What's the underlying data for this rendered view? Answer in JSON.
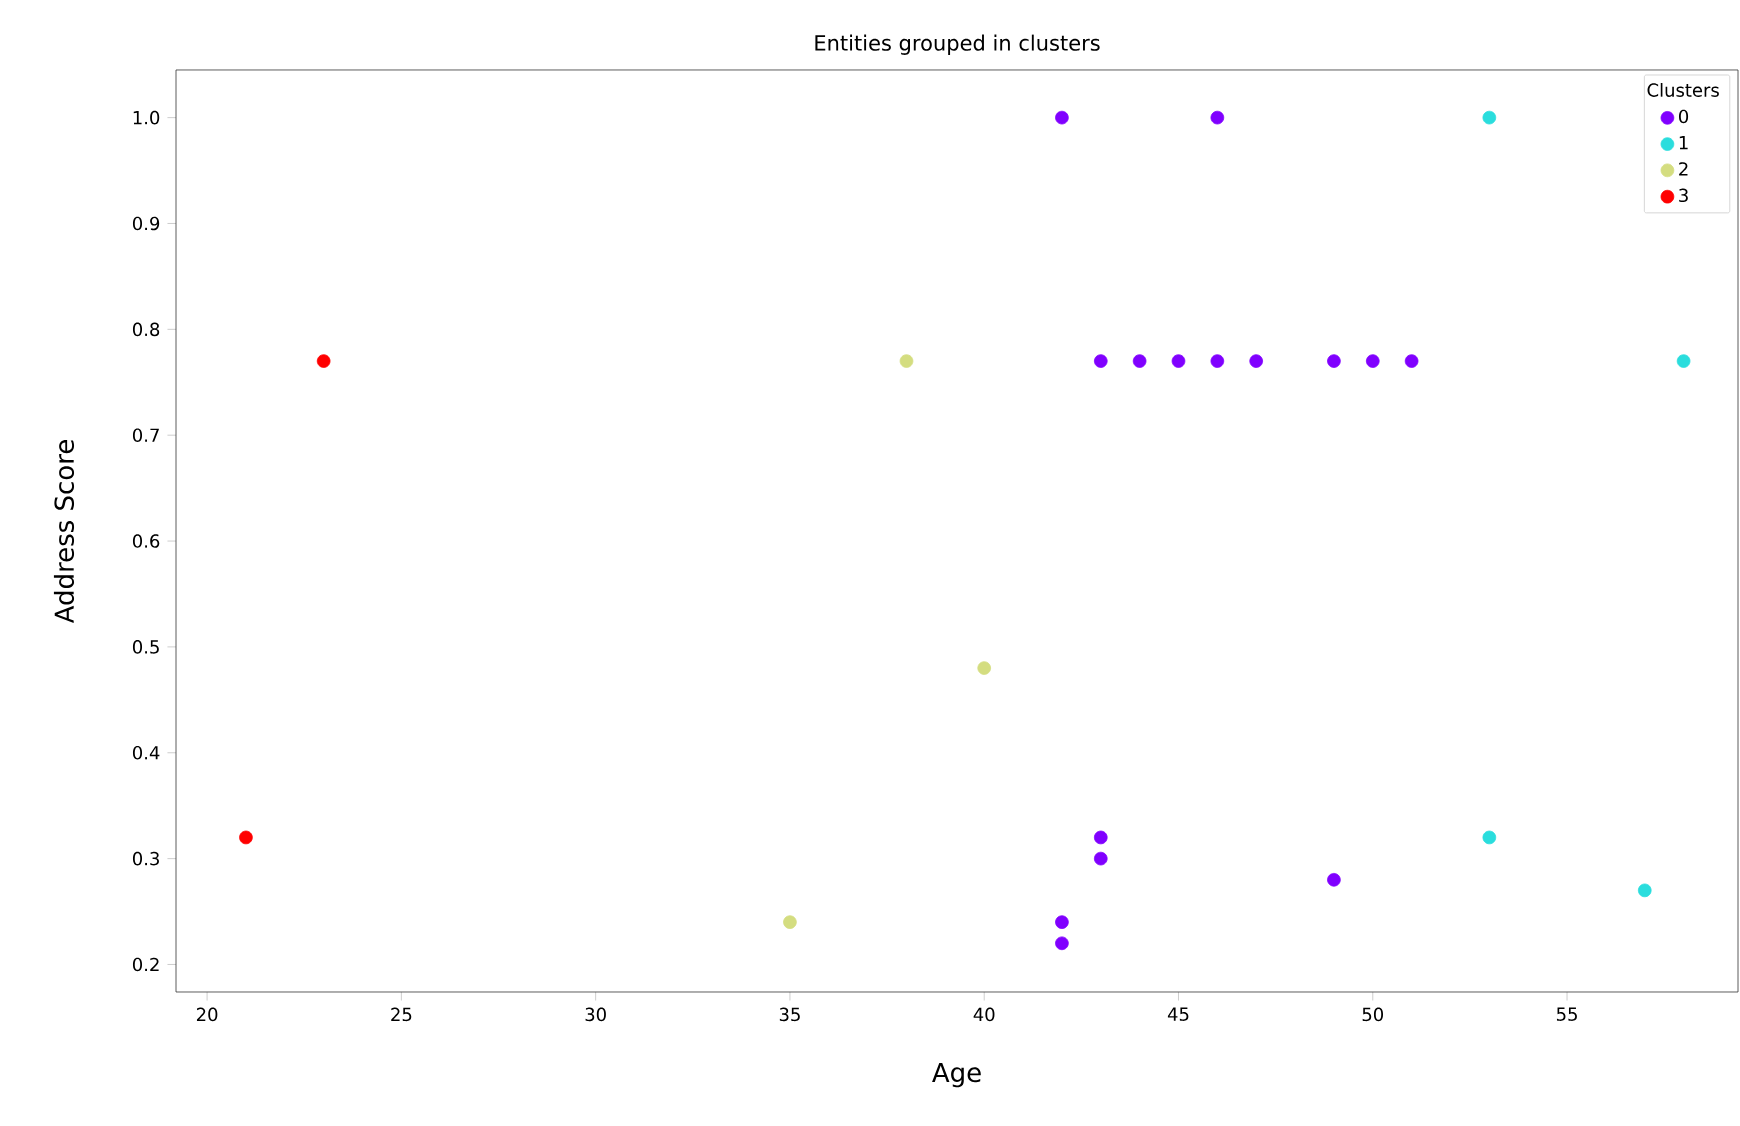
{
  "chart_data": {
    "type": "scatter",
    "title": "Entities grouped in clusters",
    "xlabel": "Age",
    "ylabel": "Address Score",
    "legend_title": "Clusters",
    "xlim": [
      19.2,
      59.4
    ],
    "ylim": [
      0.174,
      1.045
    ],
    "xticks": [
      20,
      25,
      30,
      35,
      40,
      45,
      50,
      55
    ],
    "yticks": [
      0.2,
      0.3,
      0.4,
      0.5,
      0.6,
      0.7,
      0.8,
      0.9,
      {
        "value": 1.0,
        "label": "1.0"
      }
    ],
    "legend": "top right",
    "marker": "circle",
    "grid": false,
    "series": [
      {
        "name": "0",
        "color": "#8000ff",
        "x": [
          42,
          46,
          43,
          44,
          45,
          46,
          47,
          49,
          50,
          51,
          42,
          42,
          43,
          43,
          49
        ],
        "values": [
          1.0,
          1.0,
          0.77,
          0.77,
          0.77,
          0.77,
          0.77,
          0.77,
          0.77,
          0.77,
          0.24,
          0.22,
          0.32,
          0.3,
          0.28
        ]
      },
      {
        "name": "1",
        "color": "#2adddd",
        "x": [
          53,
          58,
          53,
          57
        ],
        "values": [
          1.0,
          0.77,
          0.32,
          0.27
        ]
      },
      {
        "name": "2",
        "color": "#d4dd80",
        "x": [
          38,
          40,
          35
        ],
        "values": [
          0.77,
          0.48,
          0.24
        ]
      },
      {
        "name": "3",
        "color": "#ff0000",
        "x": [
          23,
          21
        ],
        "values": [
          0.77,
          0.32
        ]
      }
    ]
  }
}
